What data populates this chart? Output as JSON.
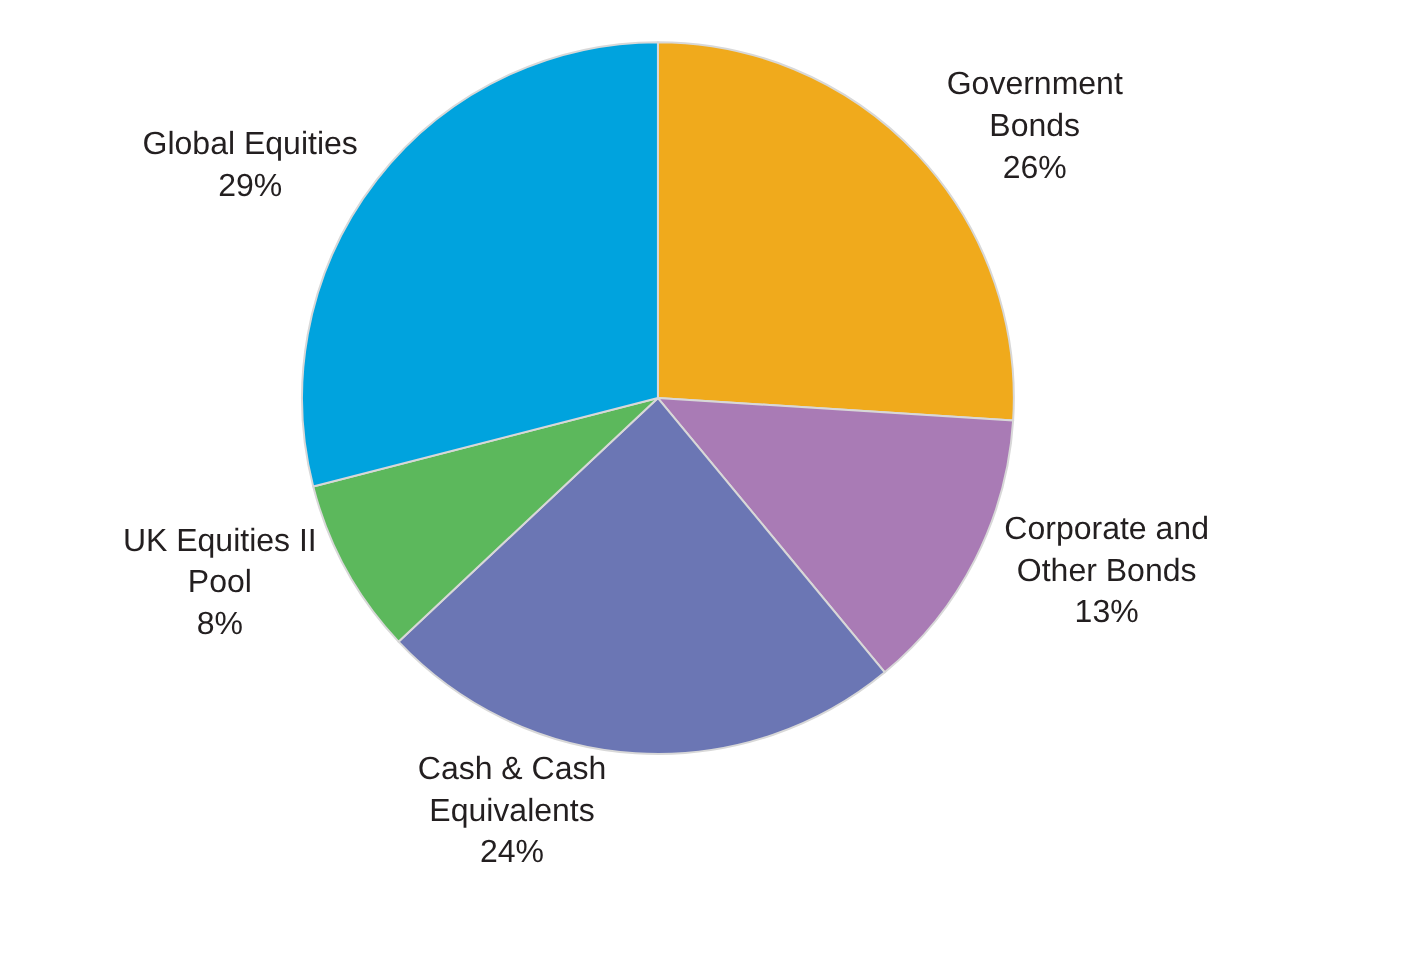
{
  "chart_data": {
    "type": "pie",
    "categories": [
      "Government Bonds",
      "Corporate and Other Bonds",
      "Cash & Cash Equivalents",
      "UK Equities II Pool",
      "Global Equities"
    ],
    "values": [
      26,
      13,
      24,
      8,
      29
    ],
    "value_labels": [
      "26%",
      "13%",
      "24%",
      "8%",
      "29%"
    ],
    "colors": [
      "#f0aa1c",
      "#a97bb5",
      "#6b76b4",
      "#5cb85c",
      "#00a3de"
    ],
    "legend": false
  }
}
